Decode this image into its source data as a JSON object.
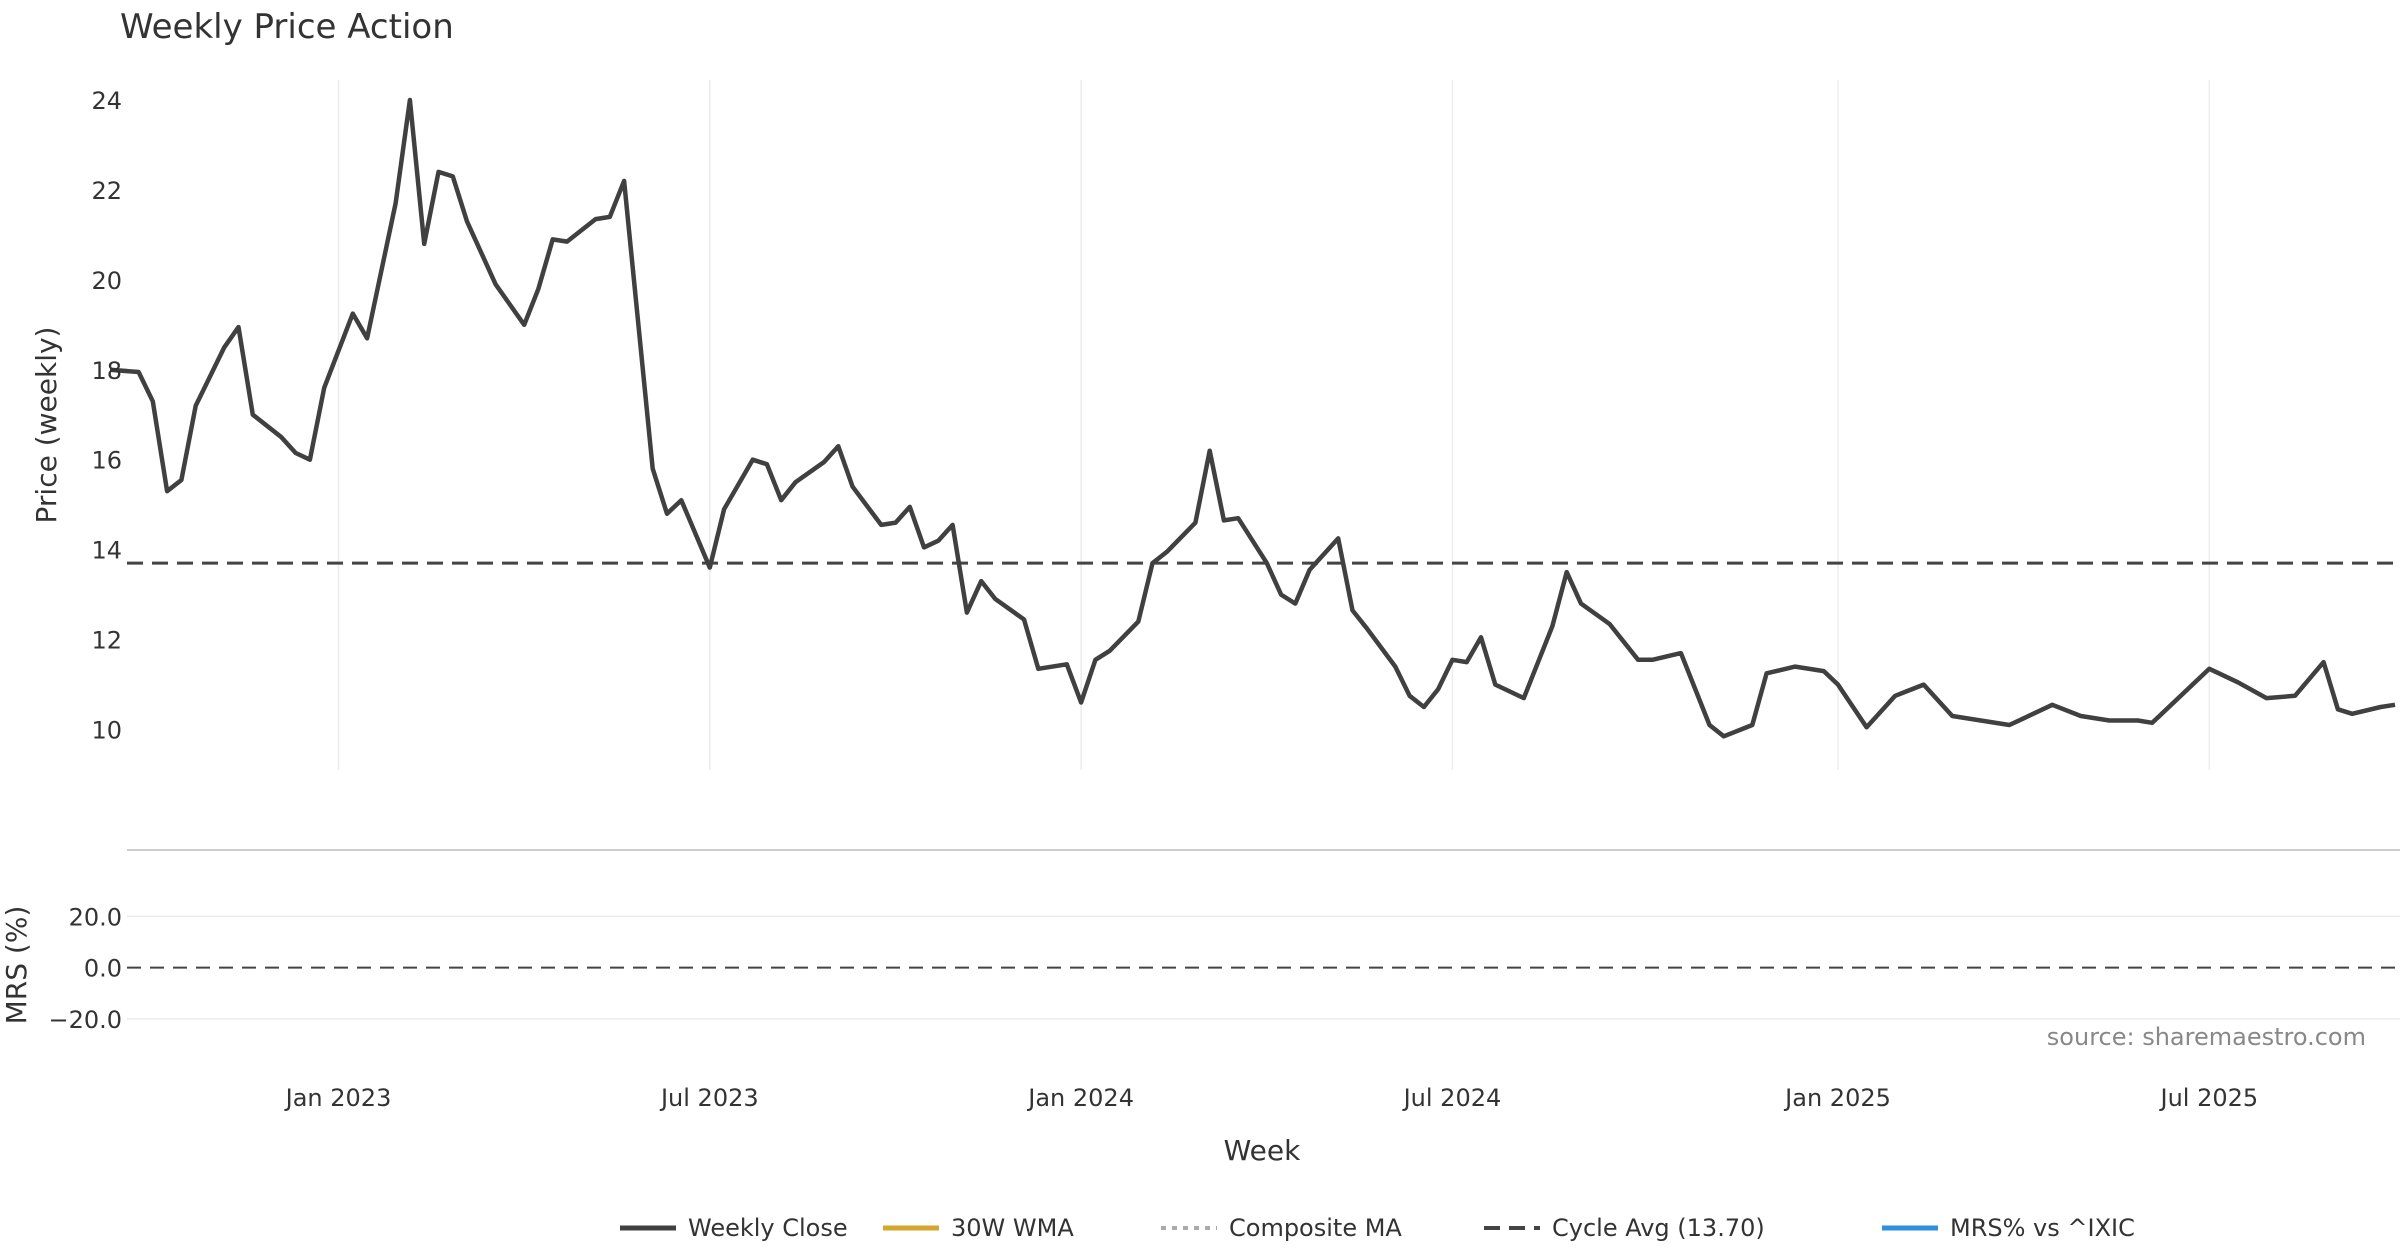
{
  "chart_data": {
    "type": "line",
    "title": "Weekly Price Action",
    "xlabel": "Week",
    "source": "source: sharemaestro.com",
    "colors": {
      "close": "#404040",
      "wma": "#d4a72c",
      "composite": "#aaaaaa",
      "cycle": "#444444",
      "mrs": "#2e8fe0",
      "buy": "#1a9e1a",
      "sell": "#c81414"
    },
    "x_ticks": [
      {
        "label": "Jan 2023",
        "date": "2023-01-02"
      },
      {
        "label": "Jul 2023",
        "date": "2023-07-03"
      },
      {
        "label": "Jan 2024",
        "date": "2024-01-01"
      },
      {
        "label": "Jul 2024",
        "date": "2024-07-01"
      },
      {
        "label": "Jan 2025",
        "date": "2025-01-06"
      },
      {
        "label": "Jul 2025",
        "date": "2025-07-07"
      }
    ],
    "x_range": [
      "2022-09-12",
      "2025-10-06"
    ],
    "price_panel": {
      "ylabel": "Price (weekly)",
      "yticks": [
        "10",
        "12",
        "14",
        "16",
        "18",
        "20",
        "22",
        "24"
      ],
      "ylim": [
        9.1,
        25.0
      ],
      "cycle_avg": 13.7
    },
    "mrs_panel": {
      "ylabel": "MRS (%)",
      "yticks": [
        "−20.0",
        "0.0",
        "20.0"
      ],
      "ylim": [
        -38,
        42
      ]
    },
    "legend": [
      {
        "label": "Weekly Close",
        "style": "solid",
        "color": "#404040"
      },
      {
        "label": "30W WMA",
        "style": "solid",
        "color": "#d4a72c"
      },
      {
        "label": "Composite MA",
        "style": "dotted",
        "color": "#aaaaaa"
      },
      {
        "label": "Cycle Avg (13.70)",
        "style": "dashed",
        "color": "#444444"
      },
      {
        "label": "MRS% vs ^IXIC",
        "style": "solid",
        "color": "#2e8fe0"
      }
    ],
    "series": [
      {
        "key": "close",
        "name": "Weekly Close",
        "points": [
          [
            "2022-09-12",
            18.0
          ],
          [
            "2022-09-26",
            17.95
          ],
          [
            "2022-10-03",
            17.3
          ],
          [
            "2022-10-10",
            15.3
          ],
          [
            "2022-10-17",
            15.55
          ],
          [
            "2022-10-24",
            17.2
          ],
          [
            "2022-11-07",
            18.5
          ],
          [
            "2022-11-14",
            18.95
          ],
          [
            "2022-11-21",
            17.0
          ],
          [
            "2022-12-05",
            16.5
          ],
          [
            "2022-12-12",
            16.15
          ],
          [
            "2022-12-19",
            16.0
          ],
          [
            "2022-12-26",
            17.6
          ],
          [
            "2023-01-09",
            19.25
          ],
          [
            "2023-01-16",
            18.7
          ],
          [
            "2023-01-30",
            21.7
          ],
          [
            "2023-02-06",
            24.0
          ],
          [
            "2023-02-13",
            20.8
          ],
          [
            "2023-02-20",
            22.4
          ],
          [
            "2023-02-27",
            22.3
          ],
          [
            "2023-03-06",
            21.3
          ],
          [
            "2023-03-20",
            19.9
          ],
          [
            "2023-04-03",
            19.0
          ],
          [
            "2023-04-10",
            19.8
          ],
          [
            "2023-04-17",
            20.9
          ],
          [
            "2023-04-24",
            20.85
          ],
          [
            "2023-05-08",
            21.35
          ],
          [
            "2023-05-15",
            21.4
          ],
          [
            "2023-05-22",
            22.2
          ],
          [
            "2023-06-05",
            15.8
          ],
          [
            "2023-06-12",
            14.8
          ],
          [
            "2023-06-19",
            15.1
          ],
          [
            "2023-07-03",
            13.6
          ],
          [
            "2023-07-10",
            14.9
          ],
          [
            "2023-07-24",
            16.0
          ],
          [
            "2023-07-31",
            15.9
          ],
          [
            "2023-08-07",
            15.1
          ],
          [
            "2023-08-14",
            15.5
          ],
          [
            "2023-08-28",
            15.95
          ],
          [
            "2023-09-04",
            16.3
          ],
          [
            "2023-09-11",
            15.4
          ],
          [
            "2023-09-25",
            14.55
          ],
          [
            "2023-10-02",
            14.6
          ],
          [
            "2023-10-09",
            14.95
          ],
          [
            "2023-10-16",
            14.05
          ],
          [
            "2023-10-23",
            14.2
          ],
          [
            "2023-10-30",
            14.55
          ],
          [
            "2023-11-06",
            12.6
          ],
          [
            "2023-11-13",
            13.3
          ],
          [
            "2023-11-20",
            12.9
          ],
          [
            "2023-12-04",
            12.45
          ],
          [
            "2023-12-11",
            11.35
          ],
          [
            "2023-12-25",
            11.45
          ],
          [
            "2024-01-01",
            10.6
          ],
          [
            "2024-01-08",
            11.55
          ],
          [
            "2024-01-15",
            11.75
          ],
          [
            "2024-01-29",
            12.4
          ],
          [
            "2024-02-05",
            13.7
          ],
          [
            "2024-02-12",
            13.95
          ],
          [
            "2024-02-26",
            14.6
          ],
          [
            "2024-03-04",
            16.2
          ],
          [
            "2024-03-11",
            14.65
          ],
          [
            "2024-03-18",
            14.7
          ],
          [
            "2024-04-01",
            13.7
          ],
          [
            "2024-04-08",
            13.0
          ],
          [
            "2024-04-15",
            12.8
          ],
          [
            "2024-04-22",
            13.55
          ],
          [
            "2024-05-06",
            14.25
          ],
          [
            "2024-05-13",
            12.65
          ],
          [
            "2024-05-20",
            12.25
          ],
          [
            "2024-06-03",
            11.4
          ],
          [
            "2024-06-10",
            10.75
          ],
          [
            "2024-06-17",
            10.5
          ],
          [
            "2024-06-24",
            10.9
          ],
          [
            "2024-07-01",
            11.55
          ],
          [
            "2024-07-08",
            11.5
          ],
          [
            "2024-07-15",
            12.05
          ],
          [
            "2024-07-22",
            11.0
          ],
          [
            "2024-08-05",
            10.7
          ],
          [
            "2024-08-19",
            12.3
          ],
          [
            "2024-08-26",
            13.5
          ],
          [
            "2024-09-02",
            12.8
          ],
          [
            "2024-09-16",
            12.35
          ],
          [
            "2024-09-30",
            11.55
          ],
          [
            "2024-10-07",
            11.55
          ],
          [
            "2024-10-21",
            11.7
          ],
          [
            "2024-11-04",
            10.1
          ],
          [
            "2024-11-11",
            9.85
          ],
          [
            "2024-11-25",
            10.1
          ],
          [
            "2024-12-02",
            11.25
          ],
          [
            "2024-12-16",
            11.4
          ],
          [
            "2024-12-30",
            11.3
          ],
          [
            "2025-01-06",
            11.0
          ],
          [
            "2025-01-20",
            10.05
          ],
          [
            "2025-02-03",
            10.75
          ],
          [
            "2025-02-17",
            11.0
          ],
          [
            "2025-03-03",
            10.3
          ],
          [
            "2025-03-17",
            10.2
          ],
          [
            "2025-03-31",
            10.1
          ],
          [
            "2025-04-07",
            10.25
          ],
          [
            "2025-04-21",
            10.55
          ],
          [
            "2025-05-05",
            10.3
          ],
          [
            "2025-05-19",
            10.2
          ],
          [
            "2025-06-02",
            10.2
          ],
          [
            "2025-06-09",
            10.15
          ],
          [
            "2025-07-07",
            11.35
          ],
          [
            "2025-07-21",
            11.05
          ],
          [
            "2025-08-04",
            10.7
          ],
          [
            "2025-08-18",
            10.75
          ],
          [
            "2025-09-01",
            11.5
          ],
          [
            "2025-09-08",
            10.45
          ],
          [
            "2025-09-15",
            10.35
          ],
          [
            "2025-09-29",
            10.5
          ],
          [
            "2025-10-06",
            10.55
          ]
        ]
      }
    ]
  }
}
